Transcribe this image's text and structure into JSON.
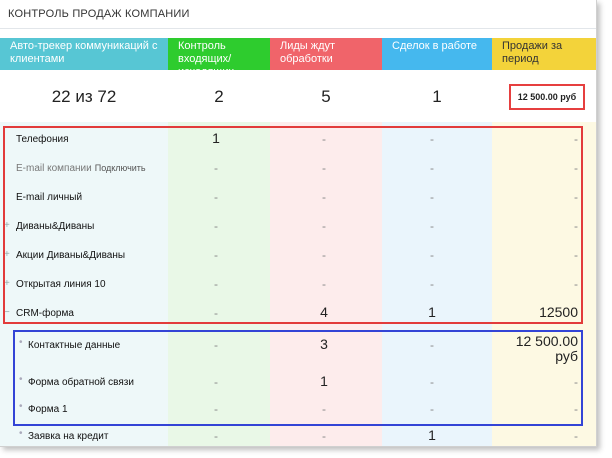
{
  "title": "КОНТРОЛЬ ПРОДАЖ КОМПАНИИ",
  "stages": [
    {
      "label": "Авто-трекер коммуникаций с клиентами",
      "count": "22 из 72",
      "color": "#57c6d4"
    },
    {
      "label": "Контроль входящих/исходящих",
      "count": "2",
      "color": "#2ecc2e"
    },
    {
      "label": "Лиды ждут обработки",
      "count": "5",
      "color": "#f0646a"
    },
    {
      "label": "Сделок в работе",
      "count": "1",
      "color": "#45b8ee"
    },
    {
      "label": "Продажи за период",
      "count": "12 500.00 руб",
      "color": "#f3d33a"
    }
  ],
  "rows": [
    {
      "label": "Телефония",
      "values": [
        "1",
        "-",
        "-",
        "-"
      ]
    },
    {
      "label": "E-mail компании",
      "connect": "Подключить",
      "values": [
        "-",
        "-",
        "-",
        "-"
      ]
    },
    {
      "label": "E-mail личный",
      "values": [
        "-",
        "-",
        "-",
        "-"
      ]
    },
    {
      "label": "Диваны&Диваны",
      "values": [
        "-",
        "-",
        "-",
        "-"
      ]
    },
    {
      "label": "Акции Диваны&Диваны",
      "values": [
        "-",
        "-",
        "-",
        "-"
      ]
    },
    {
      "label": "Открытая линия 10",
      "values": [
        "-",
        "-",
        "-",
        "-"
      ]
    },
    {
      "label": "CRM-форма",
      "values": [
        "-",
        "4",
        "1",
        "12500"
      ]
    }
  ],
  "subrows": [
    {
      "label": "Контактные данные",
      "values": [
        "-",
        "3",
        "-",
        "12 500.00 руб"
      ]
    },
    {
      "label": "Форма обратной связи",
      "values": [
        "-",
        "1",
        "-",
        "-"
      ]
    },
    {
      "label": "Форма 1",
      "values": [
        "-",
        "-",
        "-",
        "-"
      ]
    },
    {
      "label": "Заявка на кредит",
      "values": [
        "-",
        "-",
        "1",
        "-"
      ]
    }
  ]
}
